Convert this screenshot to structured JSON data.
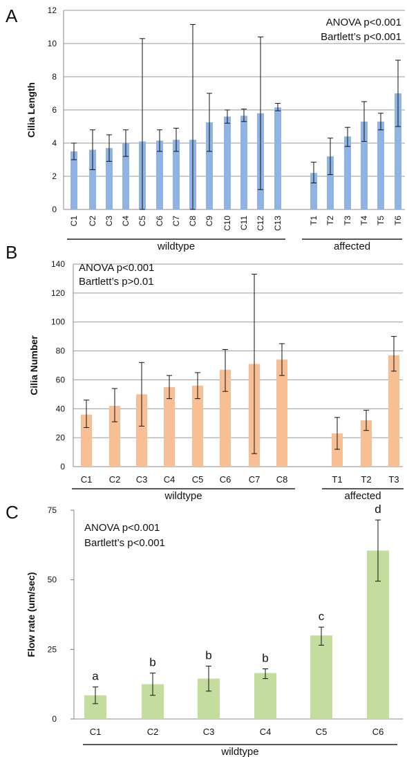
{
  "chart_data": [
    {
      "type": "bar",
      "panel_label": "A",
      "ylabel": "Cilia Length",
      "ylim": [
        0,
        12
      ],
      "yticks": [
        0,
        2,
        4,
        6,
        8,
        10,
        12
      ],
      "grid": true,
      "bar_color": "#8fb4e3",
      "annotations": [
        "ANOVA p<0.001",
        "Bartlett’s p<0.001"
      ],
      "groups": [
        {
          "label": "wildtype",
          "categories": [
            "C1",
            "C2",
            "C3",
            "C4",
            "C5",
            "C6",
            "C7",
            "C8",
            "C9",
            "C10",
            "C11",
            "C12",
            "C13"
          ]
        },
        {
          "label": "affected",
          "categories": [
            "T1",
            "T2",
            "T3",
            "T4",
            "T5",
            "T6"
          ]
        }
      ],
      "categories": [
        "C1",
        "C2",
        "C3",
        "C4",
        "C5",
        "C6",
        "C7",
        "C8",
        "C9",
        "C10",
        "C11",
        "C12",
        "C13",
        "T1",
        "T2",
        "T3",
        "T4",
        "T5",
        "T6"
      ],
      "values": [
        3.5,
        3.6,
        3.7,
        4.0,
        4.1,
        4.15,
        4.2,
        4.2,
        5.25,
        5.6,
        5.65,
        5.8,
        6.15,
        2.2,
        3.2,
        4.4,
        5.3,
        5.3,
        7.0
      ],
      "error_low": [
        3.0,
        2.4,
        2.9,
        3.2,
        0,
        3.5,
        3.5,
        0,
        3.5,
        5.2,
        5.3,
        1.2,
        5.95,
        1.6,
        2.1,
        3.8,
        4.1,
        4.8,
        5.0
      ],
      "error_high": [
        4.0,
        4.8,
        4.5,
        4.8,
        10.3,
        4.8,
        4.9,
        11.15,
        7.0,
        6.0,
        6.05,
        10.4,
        6.4,
        2.85,
        4.3,
        4.95,
        6.5,
        5.8,
        9.0
      ]
    },
    {
      "type": "bar",
      "panel_label": "B",
      "ylabel": "Cilia Number",
      "ylim": [
        0,
        140
      ],
      "yticks": [
        0,
        20,
        40,
        60,
        80,
        100,
        120,
        140
      ],
      "grid": true,
      "bar_color": "#f8bf94",
      "annotations": [
        "ANOVA p<0.001",
        "Bartlett’s p>0.01"
      ],
      "groups": [
        {
          "label": "wildtype",
          "categories": [
            "C1",
            "C2",
            "C3",
            "C4",
            "C5",
            "C6",
            "C7",
            "C8"
          ]
        },
        {
          "label": "affected",
          "categories": [
            "T1",
            "T2",
            "T3"
          ]
        }
      ],
      "categories": [
        "C1",
        "C2",
        "C3",
        "C4",
        "C5",
        "C6",
        "C7",
        "C8",
        "T1",
        "T2",
        "T3"
      ],
      "values": [
        36,
        42,
        50,
        55,
        56,
        67,
        71,
        74,
        23,
        32,
        77
      ],
      "error_low": [
        27,
        31,
        28,
        47,
        47,
        52,
        9,
        63,
        12,
        25,
        66
      ],
      "error_high": [
        46,
        54,
        72,
        63,
        65,
        81,
        133,
        85,
        34,
        39,
        90
      ]
    },
    {
      "type": "bar",
      "panel_label": "C",
      "ylabel": "Flow rate (um/sec)",
      "ylim": [
        0,
        75
      ],
      "yticks": [
        0,
        25,
        50,
        75
      ],
      "grid": false,
      "bar_color": "#c5dc9f",
      "annotations": [
        "ANOVA p<0.001",
        "Bartlett’s p<0.001"
      ],
      "groups": [
        {
          "label": "wildtype",
          "categories": [
            "C1",
            "C2",
            "C3",
            "C4",
            "C5",
            "C6"
          ]
        }
      ],
      "categories": [
        "C1",
        "C2",
        "C3",
        "C4",
        "C5",
        "C6"
      ],
      "values": [
        8.5,
        12.5,
        14.5,
        16.5,
        30,
        60.5
      ],
      "error_low": [
        5.5,
        8.5,
        10,
        14.5,
        26.5,
        49.5
      ],
      "error_high": [
        11.5,
        16.5,
        19,
        18,
        33,
        71.5
      ],
      "letters": [
        "a",
        "b",
        "b",
        "b",
        "c",
        "d"
      ]
    }
  ]
}
